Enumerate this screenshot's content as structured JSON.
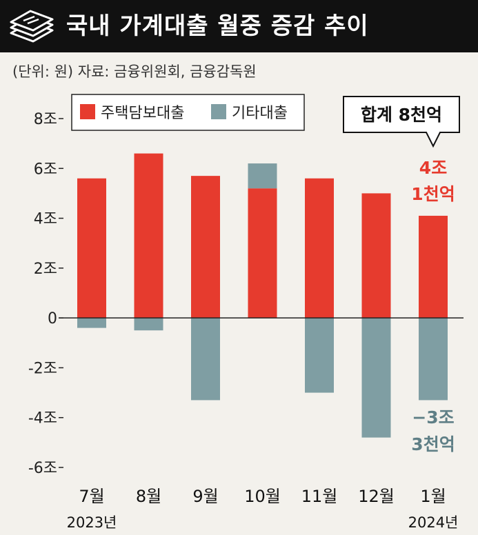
{
  "header": {
    "title": "국내 가계대출 월중 증감 추이",
    "source": "(단위: 원) 자료: 금융위원회, 금융감독원"
  },
  "colors": {
    "housing": "#e63b2e",
    "other": "#7f9ea3",
    "axis": "#222222",
    "anno_gray": "#5f7f86"
  },
  "icons": {
    "title_icon": "stacked-money-icon"
  },
  "chart_data": {
    "type": "bar",
    "stacked": true,
    "categories": [
      "7월",
      "8월",
      "9월",
      "10월",
      "11월",
      "12월",
      "1월"
    ],
    "year_labels": {
      "first": "2023년",
      "last": "2024년"
    },
    "series": [
      {
        "name": "주택담보대출",
        "values": [
          5.6,
          6.6,
          5.7,
          5.2,
          5.6,
          5.0,
          4.1
        ]
      },
      {
        "name": "기타대출",
        "values": [
          -0.4,
          -0.5,
          -3.3,
          1.0,
          -3.0,
          -4.8,
          -3.3
        ]
      }
    ],
    "ylim": [
      -6,
      8
    ],
    "yticks": [
      8,
      6,
      4,
      2,
      0,
      -2,
      -4,
      -6
    ],
    "ytick_labels": [
      "8조",
      "6조",
      "4조",
      "2조",
      "0",
      "-2조",
      "-4조",
      "-6조"
    ],
    "legend": {
      "placement": "top-left"
    },
    "annotations": {
      "total": "합계 8천억",
      "housing_line1": "4조",
      "housing_line2": "1천억",
      "other_line1": "−3조",
      "other_line2": "3천억"
    }
  }
}
